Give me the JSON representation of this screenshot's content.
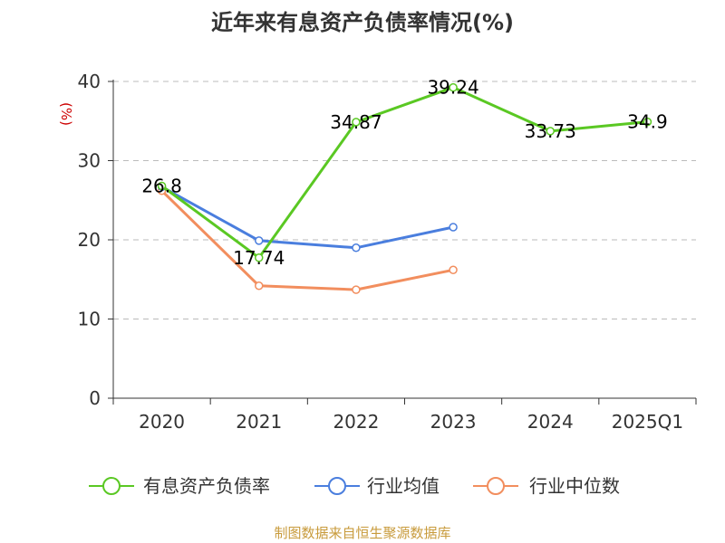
{
  "chart_data": {
    "type": "line",
    "title": "近年来有息资产负债率情况(%)",
    "ylabel": "(%)",
    "categories": [
      "2020",
      "2021",
      "2022",
      "2023",
      "2024",
      "2025Q1"
    ],
    "ylim": [
      0,
      40
    ],
    "yticks": [
      0,
      10,
      20,
      30,
      40
    ],
    "ytick_labels": [
      "0",
      "10",
      "20",
      "30",
      "40"
    ],
    "grid": "horizontal dashed",
    "legend_position": "bottom",
    "series": [
      {
        "name": "有息资产负债率",
        "color": "#5ac823",
        "values": [
          26.8,
          17.74,
          34.87,
          39.24,
          33.73,
          34.9
        ],
        "labels": [
          "26.8",
          "17.74",
          "34.87",
          "39.24",
          "33.73",
          "34.9"
        ]
      },
      {
        "name": "行业均值",
        "color": "#4a7ede",
        "values": [
          26.7,
          19.9,
          19.0,
          21.6,
          null,
          null
        ]
      },
      {
        "name": "行业中位数",
        "color": "#f28e5e",
        "values": [
          26.2,
          14.2,
          13.7,
          16.2,
          null,
          null
        ]
      }
    ]
  },
  "source": "制图数据来自恒生聚源数据库"
}
